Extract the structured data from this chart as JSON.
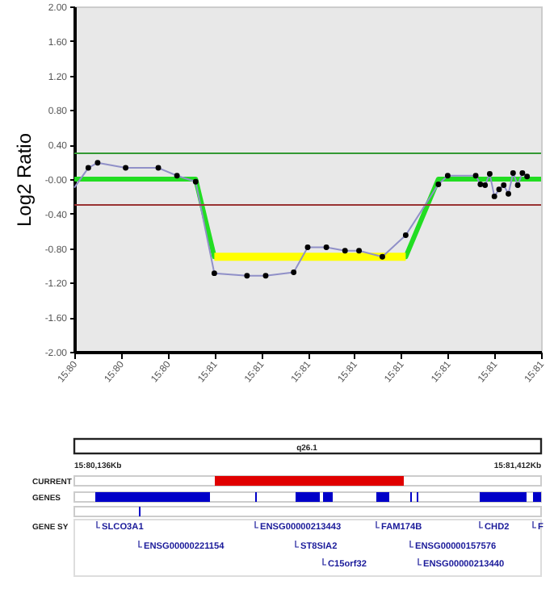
{
  "chart_data": {
    "type": "line",
    "ylabel": "Log2 Ratio",
    "categories": [
      "15:80",
      null,
      null,
      null,
      null,
      null,
      null,
      null,
      null,
      null,
      "15:80",
      null,
      null,
      null,
      null,
      null,
      null,
      null,
      null,
      null,
      "15:80",
      null,
      null,
      null,
      null,
      null,
      null,
      null,
      null,
      null,
      "15:81",
      null,
      null,
      null,
      null,
      null,
      null,
      null,
      null,
      null,
      "15:81",
      null,
      null,
      null,
      null,
      null,
      null,
      null,
      null,
      null,
      "15:81",
      null,
      null,
      null,
      null,
      null,
      null,
      null,
      null,
      null,
      "15:81",
      null,
      null,
      null,
      null,
      null,
      null,
      null,
      null,
      null,
      "15:81",
      null,
      null,
      null,
      null,
      null,
      null,
      null,
      null,
      null,
      "15:81",
      null,
      null,
      null,
      null,
      null,
      null,
      null,
      null,
      null,
      "15:81",
      null,
      null,
      null,
      null,
      null,
      null,
      null,
      null,
      null,
      "15:81"
    ],
    "ylim": [
      -2,
      2
    ],
    "yticks": [
      {
        "value": 2,
        "label": "2.00"
      },
      {
        "value": 1.6,
        "label": "1.60"
      },
      {
        "value": 1.2,
        "label": "1.20"
      },
      {
        "value": 0.8,
        "label": "0.80"
      },
      {
        "value": 0.4,
        "label": "0.40"
      },
      {
        "value": 0,
        "label": "-0.00"
      },
      {
        "value": -0.4,
        "label": "-0.40"
      },
      {
        "value": -0.8,
        "label": "-0.80"
      },
      {
        "value": -1.2,
        "label": "-1.20"
      },
      {
        "value": -1.6,
        "label": "-1.60"
      },
      {
        "value": -2,
        "label": "-2.00"
      }
    ],
    "series": [
      {
        "color": "#22dd22",
        "values": [
          0,
          null,
          null,
          null,
          null,
          null,
          null,
          null,
          null,
          null,
          null,
          null,
          null,
          null,
          null,
          null,
          null,
          null,
          null,
          null,
          null,
          null,
          null,
          null,
          null,
          null,
          0,
          null,
          null,
          null,
          -0.9,
          null,
          null,
          null,
          null,
          null,
          null,
          null,
          null,
          null,
          null,
          null,
          null,
          null,
          null,
          null,
          null,
          null,
          null,
          null,
          null,
          null,
          null,
          null,
          null,
          null,
          null,
          null,
          null,
          null,
          null,
          null,
          null,
          null,
          null,
          null,
          null,
          null,
          null,
          null,
          null,
          -0.9,
          null,
          null,
          null,
          null,
          null,
          null,
          0,
          null,
          null,
          null,
          null,
          null,
          null,
          null,
          null,
          null,
          null,
          null,
          null,
          null,
          null,
          null,
          null,
          null,
          null,
          null,
          null,
          null,
          0
        ]
      },
      {
        "color": "#ffff00",
        "values": [
          null,
          null,
          null,
          null,
          null,
          null,
          null,
          null,
          null,
          null,
          null,
          null,
          null,
          null,
          null,
          null,
          null,
          null,
          null,
          null,
          null,
          null,
          null,
          null,
          null,
          null,
          null,
          null,
          null,
          null,
          -0.9,
          null,
          null,
          null,
          null,
          null,
          null,
          null,
          null,
          null,
          null,
          null,
          null,
          null,
          null,
          null,
          null,
          null,
          null,
          null,
          null,
          null,
          null,
          null,
          null,
          null,
          null,
          null,
          null,
          null,
          null,
          null,
          null,
          null,
          null,
          null,
          null,
          null,
          null,
          null,
          null,
          -0.9,
          null,
          null,
          null,
          null,
          null,
          null,
          null,
          null,
          null,
          null,
          null,
          null,
          null,
          null,
          null,
          null,
          null,
          null,
          null,
          null,
          null,
          null,
          null,
          null,
          null,
          null,
          null,
          null,
          null
        ]
      },
      {
        "color": "#9090c8",
        "values": [
          -0.1,
          null,
          null,
          0.13,
          null,
          0.19,
          null,
          null,
          null,
          null,
          null,
          0.13,
          null,
          null,
          null,
          null,
          null,
          null,
          0.13,
          null,
          null,
          null,
          0.04,
          null,
          null,
          null,
          -0.03,
          null,
          null,
          null,
          -1.09,
          null,
          null,
          null,
          null,
          null,
          null,
          -1.12,
          null,
          null,
          null,
          -1.12,
          null,
          null,
          null,
          null,
          null,
          -1.08,
          null,
          null,
          -0.79,
          null,
          null,
          null,
          -0.79,
          null,
          null,
          null,
          -0.83,
          null,
          null,
          -0.83,
          null,
          null,
          null,
          null,
          -0.9,
          null,
          null,
          null,
          null,
          -0.65,
          null,
          null,
          null,
          null,
          null,
          null,
          -0.06,
          null,
          0.04,
          null,
          null,
          null,
          null,
          null,
          0.04,
          -0.06,
          -0.07,
          0.06,
          -0.2,
          -0.12,
          -0.07,
          -0.17,
          0.07,
          -0.07,
          0.07,
          0.03,
          null,
          null,
          null
        ]
      },
      {
        "type": "scatter",
        "color": "#000000",
        "values": [
          null,
          null,
          null,
          0.13,
          null,
          0.19,
          null,
          null,
          null,
          null,
          null,
          0.13,
          null,
          null,
          null,
          null,
          null,
          null,
          0.13,
          null,
          null,
          null,
          0.04,
          null,
          null,
          null,
          -0.03,
          null,
          null,
          null,
          -1.09,
          null,
          null,
          null,
          null,
          null,
          null,
          -1.12,
          null,
          null,
          null,
          -1.12,
          null,
          null,
          null,
          null,
          null,
          -1.08,
          null,
          null,
          -0.79,
          null,
          null,
          null,
          -0.79,
          null,
          null,
          null,
          -0.83,
          null,
          null,
          -0.83,
          null,
          null,
          null,
          null,
          -0.9,
          null,
          null,
          null,
          null,
          -0.65,
          null,
          null,
          null,
          null,
          null,
          null,
          -0.06,
          null,
          0.04,
          null,
          null,
          null,
          null,
          null,
          0.04,
          -0.06,
          -0.07,
          0.06,
          -0.2,
          -0.12,
          -0.07,
          -0.17,
          0.07,
          -0.07,
          0.07,
          0.03,
          null,
          null,
          null
        ]
      }
    ],
    "ref_lines": [
      {
        "axis": "y",
        "value": 0.3,
        "color": "#339933"
      },
      {
        "axis": "y",
        "value": -0.3,
        "color": "#993333"
      }
    ],
    "annotations": [
      "q26.1",
      "15:80,136Kb",
      "15:81,412Kb",
      "CURRENT",
      "GENES",
      "GENE SY",
      "SLCO3A1",
      "ENSG00000221154",
      "ENSG00000213443",
      "ST8SIA2",
      "C15orf32",
      "FAM174B",
      "ENSG00000157576",
      "CHD2",
      "ENSG00000213440",
      "F"
    ]
  }
}
